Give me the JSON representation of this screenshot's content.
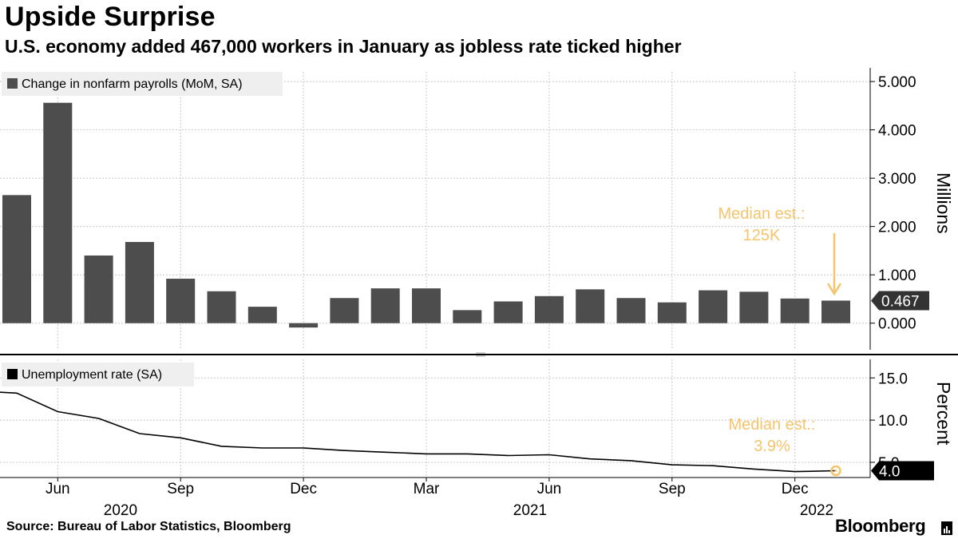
{
  "title": "Upside Surprise",
  "subtitle": "U.S. economy added 467,000 workers in January as jobless rate ticked higher",
  "source": "Source: Bureau of Labor Statistics, Bloomberg",
  "brand": "Bloomberg",
  "colors": {
    "bar": "#4d4d4d",
    "line": "#000000",
    "annotation": "#f5c46b",
    "grid": "#c8c8c8",
    "last_label_bg": "#333333",
    "last_label_bg_bottom": "#000000"
  },
  "chart_data": [
    {
      "type": "bar",
      "legend": "Change in nonfarm payrolls (MoM, SA)",
      "axis_label": "Millions",
      "ylim": [
        -0.55,
        5.2
      ],
      "yticks": [
        "5.000",
        "4.000",
        "3.000",
        "2.000",
        "1.000",
        "0.000"
      ],
      "ytick_values": [
        5,
        4,
        3,
        2,
        1,
        0
      ],
      "categories": [
        "2020-05",
        "2020-06",
        "2020-07",
        "2020-08",
        "2020-09",
        "2020-10",
        "2020-11",
        "2020-12",
        "2021-01",
        "2021-02",
        "2021-03",
        "2021-04",
        "2021-05",
        "2021-06",
        "2021-07",
        "2021-08",
        "2021-09",
        "2021-10",
        "2021-11",
        "2021-12",
        "2022-01"
      ],
      "values": [
        2.65,
        4.56,
        1.4,
        1.68,
        0.92,
        0.66,
        0.34,
        -0.09,
        0.52,
        0.72,
        0.72,
        0.27,
        0.45,
        0.56,
        0.7,
        0.52,
        0.43,
        0.68,
        0.65,
        0.51,
        0.467
      ],
      "last_value_label": "0.467",
      "annotation": {
        "lines": [
          "Median est.:",
          "125K"
        ]
      },
      "grid": true
    },
    {
      "type": "line",
      "legend": "Unemployment rate (SA)",
      "axis_label": "Percent",
      "ylim": [
        3.2,
        17.2
      ],
      "yticks": [
        "15.0",
        "10.0",
        "5.0"
      ],
      "ytick_values": [
        15,
        10,
        5
      ],
      "x": [
        "2020-05",
        "2020-06",
        "2020-07",
        "2020-08",
        "2020-09",
        "2020-10",
        "2020-11",
        "2020-12",
        "2021-01",
        "2021-02",
        "2021-03",
        "2021-04",
        "2021-05",
        "2021-06",
        "2021-07",
        "2021-08",
        "2021-09",
        "2021-10",
        "2021-11",
        "2021-12",
        "2022-01"
      ],
      "values": [
        13.2,
        11.0,
        10.2,
        8.4,
        7.9,
        6.9,
        6.7,
        6.7,
        6.4,
        6.2,
        6.0,
        6.0,
        5.8,
        5.9,
        5.4,
        5.2,
        4.7,
        4.6,
        4.2,
        3.9,
        4.0
      ],
      "last_value_label": "4.0",
      "annotation": {
        "lines": [
          "Median est.:",
          "3.9%"
        ]
      },
      "grid": true
    }
  ],
  "x_axis": {
    "month_labels": [
      {
        "label": "Jun",
        "at": "2020-06"
      },
      {
        "label": "Sep",
        "at": "2020-09"
      },
      {
        "label": "Dec",
        "at": "2020-12"
      },
      {
        "label": "Mar",
        "at": "2021-03"
      },
      {
        "label": "Jun",
        "at": "2021-06"
      },
      {
        "label": "Sep",
        "at": "2021-09"
      },
      {
        "label": "Dec",
        "at": "2021-12"
      }
    ],
    "year_labels": [
      {
        "label": "2020",
        "at": "2020-08"
      },
      {
        "label": "2021",
        "at": "2021-06"
      },
      {
        "label": "2022",
        "at": "2022-01"
      }
    ]
  }
}
